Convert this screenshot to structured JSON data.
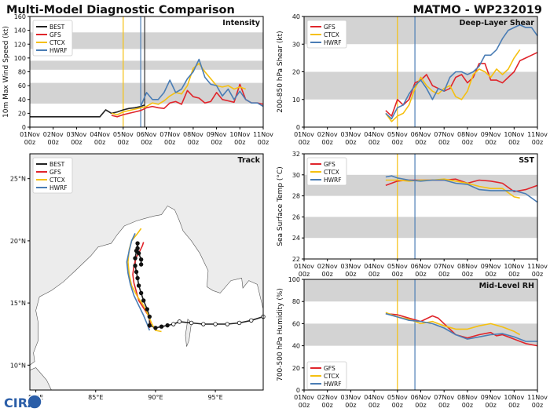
{
  "header": {
    "title": "Multi-Model Diagnostic Comparison",
    "storm": "MATMO - WP232019"
  },
  "logo": {
    "text": "CIRA"
  },
  "chart_data": [
    {
      "id": "intensity",
      "type": "line",
      "title": "Intensity",
      "ylabel": "10m Max Wind Speed (kt)",
      "ylim": [
        0,
        160
      ],
      "yticks": [
        0,
        20,
        40,
        60,
        80,
        100,
        120,
        140,
        160
      ],
      "xlim": [
        0,
        10
      ],
      "xticks": [
        "01Nov",
        "02Nov",
        "03Nov",
        "04Nov",
        "05Nov",
        "06Nov",
        "07Nov",
        "08Nov",
        "09Nov",
        "10Nov",
        "11Nov"
      ],
      "xsub": "00z",
      "bands": [
        [
          34,
          64
        ],
        [
          83,
          96
        ],
        [
          113,
          137
        ]
      ],
      "vlines": [
        {
          "x": 4.0,
          "color": "#f5c010"
        },
        {
          "x": 4.75,
          "color": "#4a7db5"
        },
        {
          "x": 4.92,
          "color": "#333333"
        }
      ],
      "legend_pos": "top-left",
      "series": [
        {
          "name": "BEST",
          "color": "#222222",
          "x": [
            0,
            2.5,
            3,
            3.25,
            3.5,
            3.75,
            4,
            4.25,
            4.5,
            4.75,
            4.92
          ],
          "y": [
            15,
            15,
            15,
            25,
            20,
            22,
            25,
            27,
            28,
            30,
            32
          ]
        },
        {
          "name": "GFS",
          "color": "#e0252b",
          "x": [
            3.5,
            3.75,
            4,
            4.25,
            4.5,
            4.75,
            5,
            5.25,
            5.5,
            5.75,
            6,
            6.25,
            6.5,
            6.75,
            7,
            7.25,
            7.5,
            7.75,
            8,
            8.25,
            8.5,
            8.75,
            9,
            9.25,
            9.5,
            9.75,
            10
          ],
          "y": [
            17,
            15,
            18,
            20,
            22,
            24,
            28,
            30,
            28,
            27,
            35,
            37,
            33,
            53,
            44,
            42,
            35,
            37,
            50,
            40,
            38,
            36,
            62,
            40,
            35,
            35,
            33
          ]
        },
        {
          "name": "CTCX",
          "color": "#f5c010",
          "x": [
            3.5,
            3.75,
            4,
            4.25,
            4.5,
            4.75,
            5,
            5.25,
            5.5,
            5.75,
            6,
            6.25,
            6.5,
            6.75,
            7,
            7.25,
            7.5,
            7.75,
            8,
            8.25,
            8.5,
            8.75,
            9,
            9.25
          ],
          "y": [
            20,
            18,
            22,
            24,
            26,
            28,
            30,
            35,
            33,
            38,
            45,
            50,
            48,
            60,
            85,
            92,
            80,
            70,
            60,
            58,
            60,
            55,
            58,
            55
          ]
        },
        {
          "name": "HWRF",
          "color": "#4a7db5",
          "x": [
            4.75,
            5,
            5.25,
            5.5,
            5.75,
            6,
            6.25,
            6.5,
            6.75,
            7,
            7.25,
            7.5,
            7.75,
            8,
            8.25,
            8.5,
            8.75,
            9,
            9.25,
            9.5,
            9.75,
            10
          ],
          "y": [
            30,
            50,
            40,
            40,
            50,
            68,
            50,
            55,
            70,
            80,
            98,
            72,
            62,
            60,
            45,
            55,
            40,
            52,
            40,
            35,
            35,
            30
          ]
        }
      ]
    },
    {
      "id": "shear",
      "type": "line",
      "title": "Deep-Layer Shear",
      "ylabel": "200-850 hPa Shear (kt)",
      "ylim": [
        0,
        40
      ],
      "yticks": [
        0,
        10,
        20,
        30,
        40
      ],
      "xlim": [
        0,
        10
      ],
      "xticks": [
        "01Nov",
        "02Nov",
        "03Nov",
        "04Nov",
        "05Nov",
        "06Nov",
        "07Nov",
        "08Nov",
        "09Nov",
        "10Nov",
        "11Nov"
      ],
      "xsub": "00z",
      "bands": [
        [
          10,
          20
        ],
        [
          30,
          40
        ]
      ],
      "vlines": [
        {
          "x": 4.0,
          "color": "#f5c010"
        },
        {
          "x": 4.75,
          "color": "#4a7db5"
        }
      ],
      "legend_pos": "top-left",
      "series": [
        {
          "name": "GFS",
          "color": "#e0252b",
          "x": [
            3.5,
            3.75,
            4,
            4.25,
            4.5,
            4.75,
            5,
            5.25,
            5.5,
            5.75,
            6,
            6.25,
            6.5,
            6.75,
            7,
            7.25,
            7.5,
            7.75,
            8,
            8.25,
            8.5,
            8.75,
            9,
            9.25,
            9.5,
            9.75,
            10
          ],
          "y": [
            6,
            4,
            10,
            8,
            10,
            16,
            17,
            19,
            15,
            14,
            13,
            14,
            18,
            19,
            16,
            18,
            23,
            23,
            17,
            17,
            16,
            18,
            20,
            24,
            25,
            26,
            27
          ]
        },
        {
          "name": "CTCX",
          "color": "#f5c010",
          "x": [
            3.5,
            3.75,
            4,
            4.25,
            4.5,
            4.75,
            5,
            5.25,
            5.5,
            5.75,
            6,
            6.25,
            6.5,
            6.75,
            7,
            7.25,
            7.5,
            7.75,
            8,
            8.25,
            8.5,
            8.75,
            9,
            9.25
          ],
          "y": [
            5,
            2,
            4,
            5,
            8,
            14,
            18,
            15,
            13,
            12,
            14,
            15,
            11,
            10,
            13,
            19,
            21,
            20,
            18,
            21,
            19,
            21,
            25,
            28
          ]
        },
        {
          "name": "HWRF",
          "color": "#4a7db5",
          "x": [
            3.5,
            3.75,
            4,
            4.25,
            4.5,
            4.75,
            5,
            5.25,
            5.5,
            5.75,
            6,
            6.25,
            6.5,
            6.75,
            7,
            7.25,
            7.5,
            7.75,
            8,
            8.25,
            8.5,
            8.75,
            9,
            9.25,
            9.5,
            9.75,
            10
          ],
          "y": [
            5,
            3,
            7,
            8,
            12,
            15,
            17,
            14,
            10,
            14,
            13,
            18,
            20,
            20,
            19,
            20,
            22,
            26,
            26,
            28,
            32,
            35,
            36,
            37,
            36,
            36,
            33
          ]
        }
      ]
    },
    {
      "id": "sst",
      "type": "line",
      "title": "SST",
      "ylabel": "Sea Surface Temp (°C)",
      "ylim": [
        22,
        32
      ],
      "yticks": [
        22,
        24,
        26,
        28,
        30,
        32
      ],
      "xlim": [
        0,
        10
      ],
      "xticks": [
        "01Nov",
        "02Nov",
        "03Nov",
        "04Nov",
        "05Nov",
        "06Nov",
        "07Nov",
        "08Nov",
        "09Nov",
        "10Nov",
        "11Nov"
      ],
      "xsub": "00z",
      "bands": [
        [
          24,
          26
        ],
        [
          28,
          30
        ]
      ],
      "vlines": [
        {
          "x": 4.0,
          "color": "#f5c010"
        },
        {
          "x": 4.75,
          "color": "#4a7db5"
        }
      ],
      "legend_pos": "top-left",
      "series": [
        {
          "name": "GFS",
          "color": "#e0252b",
          "x": [
            3.5,
            4,
            4.5,
            5,
            5.5,
            6,
            6.5,
            7,
            7.5,
            8,
            8.5,
            9,
            9.5,
            10
          ],
          "y": [
            29.0,
            29.4,
            29.5,
            29.5,
            29.5,
            29.5,
            29.6,
            29.2,
            29.5,
            29.4,
            29.2,
            28.4,
            28.6,
            29.0
          ]
        },
        {
          "name": "CTCX",
          "color": "#f5c010",
          "x": [
            3.5,
            4,
            4.5,
            5,
            5.5,
            6,
            6.5,
            7,
            7.5,
            8,
            8.5,
            9,
            9.25
          ],
          "y": [
            29.5,
            29.5,
            29.4,
            29.5,
            29.5,
            29.6,
            29.4,
            29.2,
            28.9,
            28.7,
            28.7,
            27.9,
            27.8
          ]
        },
        {
          "name": "HWRF",
          "color": "#4a7db5",
          "x": [
            3.5,
            3.75,
            4,
            4.5,
            5,
            5.5,
            6,
            6.5,
            7,
            7.5,
            8,
            8.5,
            9,
            9.5,
            10
          ],
          "y": [
            29.8,
            29.9,
            29.7,
            29.5,
            29.4,
            29.5,
            29.5,
            29.2,
            29.1,
            28.6,
            28.5,
            28.5,
            28.5,
            28.2,
            27.4
          ]
        }
      ]
    },
    {
      "id": "rh",
      "type": "line",
      "title": "Mid-Level RH",
      "ylabel": "700-500 hPa Humidity (%)",
      "ylim": [
        0,
        100
      ],
      "yticks": [
        0,
        20,
        40,
        60,
        80,
        100
      ],
      "xlim": [
        0,
        10
      ],
      "xticks": [
        "01Nov",
        "02Nov",
        "03Nov",
        "04Nov",
        "05Nov",
        "06Nov",
        "07Nov",
        "08Nov",
        "09Nov",
        "10Nov",
        "11Nov"
      ],
      "xsub": "00z",
      "bands": [
        [
          40,
          60
        ],
        [
          80,
          100
        ]
      ],
      "vlines": [
        {
          "x": 4.0,
          "color": "#f5c010"
        },
        {
          "x": 4.75,
          "color": "#4a7db5"
        }
      ],
      "legend_pos": "bottom-left",
      "series": [
        {
          "name": "GFS",
          "color": "#e0252b",
          "x": [
            3.5,
            4,
            4.5,
            5,
            5.5,
            5.75,
            6,
            6.25,
            6.5,
            7,
            7.5,
            8,
            8.25,
            8.5,
            9,
            9.5,
            10
          ],
          "y": [
            69,
            68,
            65,
            62,
            67,
            65,
            60,
            55,
            50,
            47,
            50,
            52,
            49,
            50,
            46,
            42,
            40
          ]
        },
        {
          "name": "CTCX",
          "color": "#f5c010",
          "x": [
            3.5,
            4,
            4.5,
            5,
            5.5,
            6,
            6.5,
            7,
            7.5,
            8,
            8.5,
            9,
            9.25
          ],
          "y": [
            70,
            66,
            64,
            60,
            62,
            58,
            55,
            55,
            58,
            60,
            57,
            53,
            50
          ]
        },
        {
          "name": "HWRF",
          "color": "#4a7db5",
          "x": [
            3.5,
            4,
            4.5,
            5,
            5.5,
            6,
            6.5,
            7,
            7.5,
            8,
            8.5,
            9,
            9.5,
            10
          ],
          "y": [
            69,
            66,
            63,
            62,
            60,
            56,
            50,
            46,
            48,
            50,
            51,
            48,
            44,
            44
          ]
        }
      ]
    },
    {
      "id": "track",
      "type": "scatter",
      "title": "Track",
      "xlim": [
        79.5,
        99
      ],
      "ylim": [
        8,
        27
      ],
      "xticks": [
        80,
        85,
        90,
        95
      ],
      "xtick_labels": [
        "80°E",
        "85°E",
        "90°E",
        "95°E"
      ],
      "yticks": [
        10,
        15,
        20,
        25
      ],
      "ytick_labels": [
        "10°N",
        "15°N",
        "20°N",
        "25°N"
      ],
      "legend_pos": "top-left",
      "series": [
        {
          "name": "BEST",
          "color": "#222222",
          "lon": [
            99,
            98,
            97,
            96,
            95,
            94,
            93,
            92,
            91.5,
            91,
            90.5,
            90,
            89.5,
            89.5,
            89.3,
            89.0,
            88.8,
            88.6,
            88.5,
            88.4,
            88.3,
            88.3,
            88.4,
            88.5,
            88.5,
            88.6,
            88.8,
            88.8
          ],
          "lat": [
            13.9,
            13.6,
            13.4,
            13.3,
            13.3,
            13.3,
            13.4,
            13.5,
            13.3,
            13.2,
            13.1,
            13.0,
            13.2,
            13.9,
            14.5,
            15.2,
            15.8,
            16.4,
            17.0,
            17.5,
            18.0,
            18.6,
            19.2,
            19.8,
            19.4,
            19.0,
            18.5,
            18.1
          ]
        },
        {
          "name": "GFS",
          "color": "#e0252b",
          "lon": [
            89.5,
            89.6,
            89.4,
            89.0,
            88.6,
            88.4,
            88.2,
            88.1,
            88.2,
            88.4,
            88.7,
            88.9,
            89.0
          ],
          "lat": [
            13.0,
            13.5,
            14.0,
            14.6,
            15.2,
            15.9,
            16.6,
            17.3,
            18.0,
            18.7,
            19.2,
            19.6,
            19.9
          ]
        },
        {
          "name": "CTCX",
          "color": "#f5c010",
          "lon": [
            90.5,
            90.0,
            89.7,
            89.4,
            89.0,
            88.5,
            88.0,
            87.8,
            87.7,
            87.8,
            88.0,
            88.5,
            88.8
          ],
          "lat": [
            12.7,
            12.8,
            13.3,
            14.0,
            14.8,
            15.5,
            16.4,
            17.3,
            18.3,
            19.3,
            20.0,
            20.6,
            21.0
          ]
        },
        {
          "name": "HWRF",
          "color": "#4a7db5",
          "lon": [
            89.5,
            89.3,
            89.0,
            88.6,
            88.2,
            87.9,
            87.7,
            87.6,
            87.8,
            88.0,
            88.3
          ],
          "lat": [
            12.8,
            13.3,
            14.0,
            14.8,
            15.6,
            16.5,
            17.4,
            18.3,
            19.2,
            20.0,
            20.6
          ]
        }
      ]
    }
  ]
}
